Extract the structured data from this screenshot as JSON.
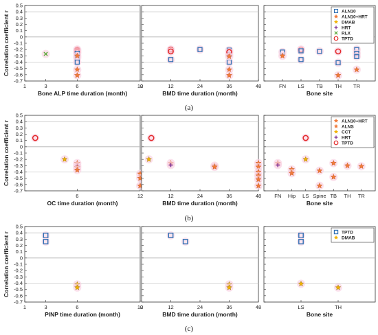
{
  "colors": {
    "ALN10": "#2f6fb3",
    "ALN10+HRT": "#f07a3a",
    "DMAB": "#f2b200",
    "HRT": "#7a2c92",
    "RLX": "#5aa83a",
    "TPTD": "#e32a2a",
    "ALNS": "#f07a3a",
    "CCT": "#f2b200",
    "grid": "#c8c8c8",
    "zero": "#b0b0b0",
    "halo": "#f9d4e4",
    "axis": "#333333"
  },
  "figure": {
    "ylabel": "Correlation coefficient r",
    "captions": [
      "(a)",
      "(b)",
      "(c)"
    ]
  },
  "chart_data": [
    {
      "type": "scatter",
      "row": "a",
      "ylim": [
        -0.7,
        0.5
      ],
      "yticks": [
        -0.7,
        -0.6,
        -0.5,
        -0.4,
        -0.3,
        -0.2,
        -0.1,
        0,
        0.1,
        0.2,
        0.3,
        0.4,
        0.5
      ],
      "ref_lines": [
        0.4,
        0,
        -0.4
      ],
      "legend": [
        "ALN10",
        "ALN10+HRT",
        "DMAB",
        "HRT",
        "RLX",
        "TPTD"
      ],
      "panels": [
        {
          "xlabel": "Bone ALP time duration (month)",
          "xlim": [
            1,
            12
          ],
          "xticks": [
            "1",
            "3",
            "6",
            "12"
          ],
          "xtick_vals": [
            1,
            3,
            6,
            12
          ],
          "points": [
            {
              "s": "RLX",
              "x": 3,
              "y": -0.27
            },
            {
              "s": "TPTD",
              "x": 6,
              "y": -0.2
            },
            {
              "s": "TPTD",
              "x": 6,
              "y": -0.22
            },
            {
              "s": "TPTD",
              "x": 6,
              "y": -0.24
            },
            {
              "s": "ALN10",
              "x": 6,
              "y": -0.26
            },
            {
              "s": "ALN10",
              "x": 6,
              "y": -0.33
            },
            {
              "s": "ALN10",
              "x": 6,
              "y": -0.4
            },
            {
              "s": "ALN10+HRT",
              "x": 6,
              "y": -0.3
            },
            {
              "s": "ALN10+HRT",
              "x": 6,
              "y": -0.52
            },
            {
              "s": "ALN10+HRT",
              "x": 6,
              "y": -0.61
            }
          ]
        },
        {
          "xlabel": "BMD time duration (month)",
          "xlim": [
            0,
            48
          ],
          "xticks": [
            "0",
            "12",
            "24",
            "36",
            "48"
          ],
          "xtick_vals": [
            0,
            12,
            24,
            36,
            48
          ],
          "points": [
            {
              "s": "TPTD",
              "x": 12,
              "y": -0.2
            },
            {
              "s": "TPTD",
              "x": 12,
              "y": -0.23
            },
            {
              "s": "ALN10",
              "x": 12,
              "y": -0.36
            },
            {
              "s": "ALN10",
              "x": 24,
              "y": -0.2
            },
            {
              "s": "ALN10",
              "x": 36,
              "y": -0.21
            },
            {
              "s": "ALN10",
              "x": 36,
              "y": -0.28
            },
            {
              "s": "ALN10",
              "x": 36,
              "y": -0.4
            },
            {
              "s": "TPTD",
              "x": 36,
              "y": -0.24
            },
            {
              "s": "ALN10+HRT",
              "x": 36,
              "y": -0.31
            },
            {
              "s": "ALN10+HRT",
              "x": 36,
              "y": -0.52
            },
            {
              "s": "ALN10+HRT",
              "x": 36,
              "y": -0.61
            }
          ]
        },
        {
          "xlabel": "Bone site",
          "categories": [
            "FN",
            "LS",
            "TB",
            "TH",
            "TR"
          ],
          "points": [
            {
              "s": "ALN10",
              "x": "FN",
              "y": -0.24
            },
            {
              "s": "ALN10+HRT",
              "x": "FN",
              "y": -0.3
            },
            {
              "s": "TPTD",
              "x": "LS",
              "y": -0.2
            },
            {
              "s": "ALN10",
              "x": "LS",
              "y": -0.22
            },
            {
              "s": "ALN10",
              "x": "LS",
              "y": -0.36
            },
            {
              "s": "ALN10",
              "x": "TB",
              "y": -0.23
            },
            {
              "s": "TPTD",
              "x": "TH",
              "y": -0.23
            },
            {
              "s": "ALN10",
              "x": "TH",
              "y": -0.41
            },
            {
              "s": "ALN10+HRT",
              "x": "TH",
              "y": -0.61
            },
            {
              "s": "ALN10",
              "x": "TR",
              "y": -0.2
            },
            {
              "s": "ALN10",
              "x": "TR",
              "y": -0.26
            },
            {
              "s": "ALN10",
              "x": "TR",
              "y": -0.31
            },
            {
              "s": "ALN10+HRT",
              "x": "TR",
              "y": -0.52
            }
          ]
        }
      ]
    },
    {
      "type": "scatter",
      "row": "b",
      "ylim": [
        -0.7,
        0.5
      ],
      "yticks": [
        -0.7,
        -0.6,
        -0.5,
        -0.4,
        -0.3,
        -0.2,
        -0.1,
        0,
        0.1,
        0.2,
        0.3,
        0.4,
        0.5
      ],
      "ref_lines": [
        0.4,
        0,
        -0.4
      ],
      "legend": [
        "ALN10+HRT",
        "ALNS",
        "CCT",
        "HRT",
        "TPTD"
      ],
      "panels": [
        {
          "xlabel": "OC time duration (month)",
          "xlim": [
            1,
            12
          ],
          "xticks": [
            "6",
            "12"
          ],
          "xtick_vals": [
            6,
            12
          ],
          "points": [
            {
              "s": "TPTD",
              "x": 2,
              "y": 0.14
            },
            {
              "s": "CCT",
              "x": 4.8,
              "y": -0.2
            },
            {
              "s": "ALN10+HRT",
              "x": 6,
              "y": -0.26
            },
            {
              "s": "HRT",
              "x": 6,
              "y": -0.3
            },
            {
              "s": "ALNS",
              "x": 6,
              "y": -0.33
            },
            {
              "s": "ALNS",
              "x": 6,
              "y": -0.37
            },
            {
              "s": "ALNS",
              "x": 12,
              "y": -0.43
            },
            {
              "s": "ALNS",
              "x": 12,
              "y": -0.5
            },
            {
              "s": "ALNS",
              "x": 12,
              "y": -0.62
            }
          ]
        },
        {
          "xlabel": "BMD time duration (month)",
          "xlim": [
            0,
            48
          ],
          "xticks": [
            "12",
            "24",
            "36",
            "48"
          ],
          "xtick_vals": [
            12,
            24,
            36,
            48
          ],
          "points": [
            {
              "s": "TPTD",
              "x": 4,
              "y": 0.14
            },
            {
              "s": "CCT",
              "x": 3,
              "y": -0.2
            },
            {
              "s": "ALN10+HRT",
              "x": 12,
              "y": -0.26
            },
            {
              "s": "HRT",
              "x": 12,
              "y": -0.29
            },
            {
              "s": "ALNS",
              "x": 30,
              "y": -0.3
            },
            {
              "s": "ALNS",
              "x": 30,
              "y": -0.32
            },
            {
              "s": "ALNS",
              "x": 48,
              "y": -0.26
            },
            {
              "s": "ALNS",
              "x": 48,
              "y": -0.32
            },
            {
              "s": "ALNS",
              "x": 48,
              "y": -0.4
            },
            {
              "s": "ALNS",
              "x": 48,
              "y": -0.46
            },
            {
              "s": "ALNS",
              "x": 48,
              "y": -0.52
            },
            {
              "s": "ALNS",
              "x": 48,
              "y": -0.62
            }
          ]
        },
        {
          "xlabel": "Bone site",
          "categories": [
            "FN",
            "Hip",
            "LS",
            "Spine",
            "TB",
            "TH",
            "TR"
          ],
          "points": [
            {
              "s": "ALN10+HRT",
              "x": "FN",
              "y": -0.26
            },
            {
              "s": "HRT",
              "x": "FN",
              "y": -0.29
            },
            {
              "s": "ALNS",
              "x": "Hip",
              "y": -0.36
            },
            {
              "s": "ALNS",
              "x": "Hip",
              "y": -0.42
            },
            {
              "s": "TPTD",
              "x": "LS",
              "y": 0.14
            },
            {
              "s": "CCT",
              "x": "LS",
              "y": -0.2
            },
            {
              "s": "ALNS",
              "x": "Spine",
              "y": -0.38
            },
            {
              "s": "ALNS",
              "x": "Spine",
              "y": -0.62
            },
            {
              "s": "ALNS",
              "x": "TB",
              "y": -0.26
            },
            {
              "s": "ALNS",
              "x": "TB",
              "y": -0.48
            },
            {
              "s": "ALNS",
              "x": "TH",
              "y": -0.3
            },
            {
              "s": "ALNS",
              "x": "TR",
              "y": -0.31
            }
          ]
        }
      ]
    },
    {
      "type": "scatter",
      "row": "c",
      "ylim": [
        -0.7,
        0.5
      ],
      "yticks": [
        -0.7,
        -0.6,
        -0.5,
        -0.4,
        -0.3,
        -0.2,
        -0.1,
        0,
        0.1,
        0.2,
        0.3,
        0.4,
        0.5
      ],
      "ref_lines": [
        0.4,
        0,
        -0.4
      ],
      "legend": [
        "TPTD",
        "DMAB"
      ],
      "panels": [
        {
          "xlabel": "PINP time duration (month)",
          "xlim": [
            1,
            12
          ],
          "xticks": [
            "1",
            "3",
            "6",
            "12"
          ],
          "xtick_vals": [
            1,
            3,
            6,
            12
          ],
          "points": [
            {
              "s": "TPTD",
              "x": 3,
              "y": 0.36
            },
            {
              "s": "TPTD",
              "x": 3,
              "y": 0.26
            },
            {
              "s": "DMAB",
              "x": 6,
              "y": -0.42
            },
            {
              "s": "DMAB",
              "x": 6,
              "y": -0.47
            }
          ]
        },
        {
          "xlabel": "BMD time duration (month)",
          "xlim": [
            0,
            48
          ],
          "xticks": [
            "0",
            "12",
            "24",
            "36",
            "48"
          ],
          "xtick_vals": [
            0,
            12,
            24,
            36,
            48
          ],
          "points": [
            {
              "s": "TPTD",
              "x": 12,
              "y": 0.36
            },
            {
              "s": "TPTD",
              "x": 18,
              "y": 0.26
            },
            {
              "s": "DMAB",
              "x": 36,
              "y": -0.42
            },
            {
              "s": "DMAB",
              "x": 36,
              "y": -0.47
            }
          ]
        },
        {
          "xlabel": "Bone site",
          "categories": [
            "LS",
            "TH"
          ],
          "points": [
            {
              "s": "TPTD",
              "x": "LS",
              "y": 0.36
            },
            {
              "s": "TPTD",
              "x": "LS",
              "y": 0.26
            },
            {
              "s": "DMAB",
              "x": "LS",
              "y": -0.41
            },
            {
              "s": "DMAB",
              "x": "TH",
              "y": -0.47
            }
          ]
        }
      ]
    }
  ]
}
